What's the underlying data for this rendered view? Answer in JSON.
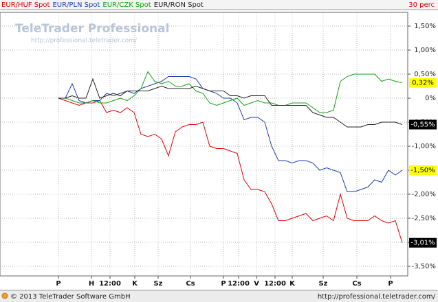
{
  "chart_data": {
    "type": "line",
    "legend": [
      "EUR/HUF Spot",
      "EUR/PLN Spot",
      "EUR/CZK Spot",
      "EUR/RON Spot"
    ],
    "interval": "30 perc",
    "watermark": {
      "title": "TeleTrader Professional",
      "url": "http://professional.teletrader.com/"
    },
    "footer": {
      "copyright": "© 2013 TeleTrader Software GmbH",
      "url": "http://professional.teletrader.com/"
    },
    "grid": true,
    "xlim": [
      -17,
      101.6
    ],
    "ylim": [
      -3.7,
      1.786
    ],
    "xticks": [
      {
        "value": 0,
        "label": "P"
      },
      {
        "value": 9.6,
        "label": "H"
      },
      {
        "value": 15,
        "label": "12:00"
      },
      {
        "value": 22.2,
        "label": "K"
      },
      {
        "value": 29,
        "label": "Sz"
      },
      {
        "value": 38.4,
        "label": "Cs"
      },
      {
        "value": 48,
        "label": "P"
      },
      {
        "value": 52.4,
        "label": "12:00"
      },
      {
        "value": 57.6,
        "label": "V"
      },
      {
        "value": 63,
        "label": "12:00"
      },
      {
        "value": 68,
        "label": "K"
      },
      {
        "value": 77,
        "label": "Sz"
      },
      {
        "value": 86.8,
        "label": "Cs"
      },
      {
        "value": 96.6,
        "label": "P"
      }
    ],
    "yticks": [
      {
        "value": 1.5,
        "label": "1,50%"
      },
      {
        "value": 1,
        "label": "1,00%"
      },
      {
        "value": 0.5,
        "label": "0,50%"
      },
      {
        "value": 0,
        "label": "0%"
      },
      {
        "value": -0.5,
        "label": "-0,50%"
      },
      {
        "value": -1,
        "label": "-1,00%"
      },
      {
        "value": -1.5,
        "label": "-1,50%"
      },
      {
        "value": -2,
        "label": "-2,00%"
      },
      {
        "value": -2.5,
        "label": "-2,50%"
      },
      {
        "value": -3,
        "label": "-3,00%"
      },
      {
        "value": -3.5,
        "label": "-3,50%"
      }
    ],
    "x": [
      0,
      2,
      4,
      6,
      8,
      10,
      12,
      14,
      16,
      18,
      20,
      22,
      24,
      26,
      28,
      30,
      32,
      34,
      36,
      38,
      40,
      42,
      44,
      46,
      48,
      50,
      52,
      54,
      56,
      58,
      60,
      62,
      64,
      66,
      68,
      70,
      72,
      74,
      76,
      78,
      80,
      82,
      84,
      86,
      88,
      90,
      92,
      94,
      96,
      98,
      100
    ],
    "series": [
      {
        "name": "EUR/HUF Spot",
        "color": "#e00000",
        "end_label": "-3,01%",
        "label_background": "#000000",
        "label_color": "#ffffff",
        "values": [
          0,
          -0.05,
          -0.1,
          -0.15,
          -0.1,
          -0.1,
          -0.05,
          -0.3,
          -0.25,
          -0.3,
          -0.2,
          -0.3,
          -0.75,
          -0.8,
          -0.75,
          -0.85,
          -1.2,
          -0.7,
          -0.6,
          -0.55,
          -0.55,
          -0.5,
          -1.0,
          -1.05,
          -1.05,
          -1.1,
          -1.15,
          -1.7,
          -1.9,
          -1.9,
          -1.95,
          -2.2,
          -2.55,
          -2.55,
          -2.5,
          -2.45,
          -2.4,
          -2.55,
          -2.5,
          -2.45,
          -2.55,
          -2.0,
          -2.5,
          -2.55,
          -2.55,
          -2.55,
          -2.45,
          -2.55,
          -2.6,
          -2.55,
          -3.01
        ]
      },
      {
        "name": "EUR/PLN Spot",
        "color": "#1a3ea8",
        "end_label": "-1,50%",
        "label_background": "#ffff00",
        "label_color": "#000000",
        "values": [
          0,
          0,
          0.3,
          -0.05,
          -0.1,
          -0.05,
          -0.05,
          0.1,
          0.05,
          0.1,
          0.15,
          0.1,
          0.2,
          0.25,
          0.3,
          0.35,
          0.45,
          0.45,
          0.45,
          0.45,
          0.4,
          0.2,
          0.15,
          0.1,
          0,
          0,
          -0.1,
          -0.45,
          -0.4,
          -0.4,
          -0.5,
          -1.0,
          -1.3,
          -1.3,
          -1.35,
          -1.3,
          -1.3,
          -1.35,
          -1.5,
          -1.45,
          -1.5,
          -1.55,
          -1.95,
          -1.95,
          -1.9,
          -1.85,
          -1.7,
          -1.75,
          -1.5,
          -1.6,
          -1.5
        ]
      },
      {
        "name": "EUR/CZK Spot",
        "color": "#10a010",
        "end_label": "0,32%",
        "label_background": "#ffff00",
        "label_color": "#000000",
        "values": [
          0,
          0,
          -0.05,
          -0.1,
          -0.1,
          -0.05,
          -0.1,
          -0.1,
          -0.05,
          0,
          -0.05,
          0.05,
          0.2,
          0.55,
          0.35,
          0.3,
          0.35,
          0.25,
          0.25,
          0.3,
          0.15,
          0.1,
          -0.1,
          -0.15,
          -0.1,
          -0.05,
          0,
          -0.15,
          -0.1,
          -0.05,
          -0.1,
          -0.1,
          -0.15,
          -0.15,
          -0.1,
          -0.1,
          -0.1,
          -0.2,
          -0.3,
          -0.3,
          -0.25,
          0.35,
          0.45,
          0.5,
          0.5,
          0.5,
          0.5,
          0.35,
          0.4,
          0.35,
          0.32
        ]
      },
      {
        "name": "EUR/RON Spot",
        "color": "#202020",
        "end_label": "-0,55%",
        "label_background": "#000000",
        "label_color": "#ffffff",
        "values": [
          0,
          0,
          0.05,
          0,
          0,
          0.4,
          0,
          0.05,
          0.1,
          0.05,
          0.15,
          0.15,
          0.15,
          0.15,
          0.2,
          0.25,
          0.2,
          0.2,
          0.2,
          0.2,
          0.25,
          0.2,
          0.15,
          0.15,
          0.15,
          0.05,
          0.05,
          0,
          0.05,
          0.05,
          0.05,
          -0.15,
          -0.15,
          -0.15,
          -0.15,
          -0.15,
          -0.15,
          -0.3,
          -0.35,
          -0.4,
          -0.4,
          -0.5,
          -0.6,
          -0.6,
          -0.6,
          -0.55,
          -0.55,
          -0.5,
          -0.5,
          -0.5,
          -0.55
        ]
      }
    ]
  }
}
